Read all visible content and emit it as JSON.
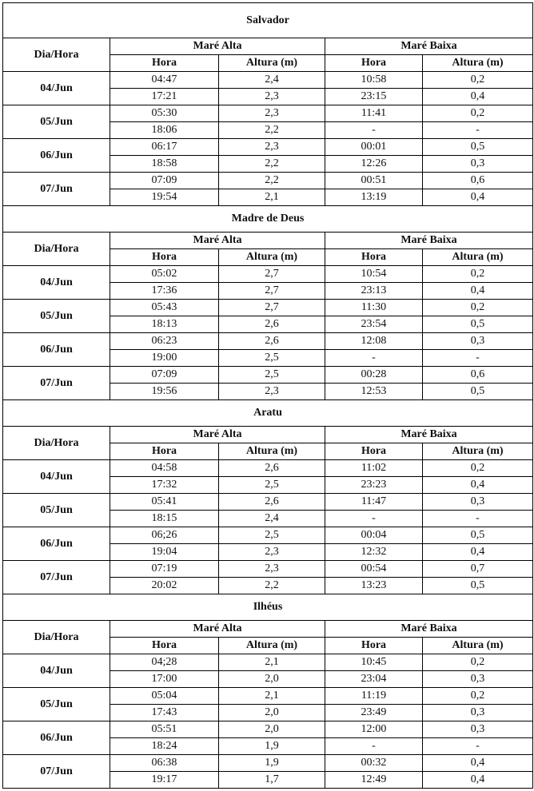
{
  "columns": {
    "day": "Dia/Hora",
    "high_tide": "Maré Alta",
    "low_tide": "Maré Baixa",
    "hour": "Hora",
    "height": "Altura (m)"
  },
  "sections": [
    {
      "title": "Salvador",
      "days": [
        {
          "date": "04/Jun",
          "rows": [
            [
              "04:47",
              "2,4",
              "10:58",
              "0,2"
            ],
            [
              "17:21",
              "2,3",
              "23:15",
              "0,4"
            ]
          ]
        },
        {
          "date": "05/Jun",
          "rows": [
            [
              "05:30",
              "2,3",
              "11:41",
              "0,2"
            ],
            [
              "18:06",
              "2,2",
              "-",
              "-"
            ]
          ]
        },
        {
          "date": "06/Jun",
          "rows": [
            [
              "06:17",
              "2,3",
              "00:01",
              "0,5"
            ],
            [
              "18:58",
              "2,2",
              "12:26",
              "0,3"
            ]
          ]
        },
        {
          "date": "07/Jun",
          "rows": [
            [
              "07:09",
              "2,2",
              "00:51",
              "0,6"
            ],
            [
              "19:54",
              "2,1",
              "13:19",
              "0,4"
            ]
          ]
        }
      ]
    },
    {
      "title": "Madre de Deus",
      "days": [
        {
          "date": "04/Jun",
          "rows": [
            [
              "05:02",
              "2,7",
              "10:54",
              "0,2"
            ],
            [
              "17:36",
              "2,7",
              "23:13",
              "0,4"
            ]
          ]
        },
        {
          "date": "05/Jun",
          "rows": [
            [
              "05:43",
              "2,7",
              "11:30",
              "0,2"
            ],
            [
              "18:13",
              "2,6",
              "23:54",
              "0,5"
            ]
          ]
        },
        {
          "date": "06/Jun",
          "rows": [
            [
              "06:23",
              "2,6",
              "12:08",
              "0,3"
            ],
            [
              "19:00",
              "2,5",
              "-",
              "-"
            ]
          ]
        },
        {
          "date": "07/Jun",
          "rows": [
            [
              "07:09",
              "2,5",
              "00:28",
              "0,6"
            ],
            [
              "19:56",
              "2,3",
              "12:53",
              "0,5"
            ]
          ]
        }
      ]
    },
    {
      "title": "Aratu",
      "days": [
        {
          "date": "04/Jun",
          "rows": [
            [
              "04:58",
              "2,6",
              "11:02",
              "0,2"
            ],
            [
              "17:32",
              "2,5",
              "23:23",
              "0,4"
            ]
          ]
        },
        {
          "date": "05/Jun",
          "rows": [
            [
              "05:41",
              "2,6",
              "11:47",
              "0,3"
            ],
            [
              "18:15",
              "2,4",
              "-",
              "-"
            ]
          ]
        },
        {
          "date": "06/Jun",
          "rows": [
            [
              "06;26",
              "2,5",
              "00:04",
              "0,5"
            ],
            [
              "19:04",
              "2,3",
              "12:32",
              "0,4"
            ]
          ]
        },
        {
          "date": "07/Jun",
          "rows": [
            [
              "07:19",
              "2,3",
              "00:54",
              "0,7"
            ],
            [
              "20:02",
              "2,2",
              "13:23",
              "0,5"
            ]
          ]
        }
      ]
    },
    {
      "title": "Ilhéus",
      "days": [
        {
          "date": "04/Jun",
          "rows": [
            [
              "04;28",
              "2,1",
              "10:45",
              "0,2"
            ],
            [
              "17:00",
              "2,0",
              "23:04",
              "0,3"
            ]
          ]
        },
        {
          "date": "05/Jun",
          "rows": [
            [
              "05:04",
              "2,1",
              "11:19",
              "0,2"
            ],
            [
              "17:43",
              "2,0",
              "23:49",
              "0,3"
            ]
          ]
        },
        {
          "date": "06/Jun",
          "rows": [
            [
              "05:51",
              "2,0",
              "12:00",
              "0,3"
            ],
            [
              "18:24",
              "1,9",
              "-",
              "-"
            ]
          ]
        },
        {
          "date": "07/Jun",
          "rows": [
            [
              "06:38",
              "1,9",
              "00:32",
              "0,4"
            ],
            [
              "19:17",
              "1,7",
              "12:49",
              "0,4"
            ]
          ]
        }
      ]
    }
  ]
}
